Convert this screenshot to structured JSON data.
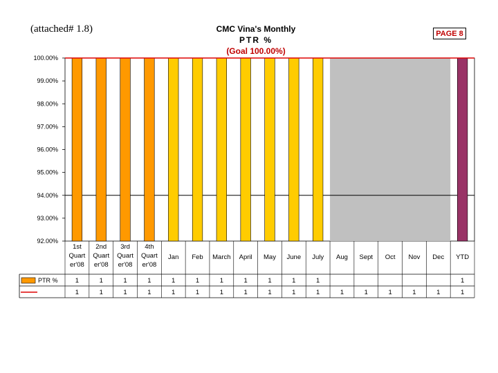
{
  "header": {
    "attached_label": "(attached# 1.8)",
    "page_label": "PAGE 8"
  },
  "colors": {
    "quarter_bar": "#ff9900",
    "month_bar": "#ffcc00",
    "ytd_bar": "#993366",
    "goal_line": "#dd0000",
    "plot_bg": "#c0c0c0"
  },
  "chart_data": {
    "type": "bar",
    "title": [
      "CMC Vina's Monthly",
      "PTR %",
      "(Goal 100.00%)"
    ],
    "categories": [
      [
        "1st",
        "Quart",
        "er'08"
      ],
      [
        "2nd",
        "Quart",
        "er'08"
      ],
      [
        "3rd",
        "Quart",
        "er'08"
      ],
      [
        "4th",
        "Quart",
        "er'08"
      ],
      [
        "Jan"
      ],
      [
        "Feb"
      ],
      [
        "March"
      ],
      [
        "April"
      ],
      [
        "May"
      ],
      [
        "June"
      ],
      [
        "July"
      ],
      [
        "Aug"
      ],
      [
        "Sept"
      ],
      [
        "Oct"
      ],
      [
        "Nov"
      ],
      [
        "Dec"
      ],
      [
        "YTD"
      ]
    ],
    "series": [
      {
        "name": "PTR %",
        "type": "bar",
        "values": [
          1,
          1,
          1,
          1,
          1,
          1,
          1,
          1,
          1,
          1,
          1,
          null,
          null,
          null,
          null,
          null,
          1
        ],
        "labels": [
          "1",
          "1",
          "1",
          "1",
          "1",
          "1",
          "1",
          "1",
          "1",
          "1",
          "1",
          "",
          "",
          "",
          "",
          "",
          "1"
        ]
      },
      {
        "name": "",
        "type": "line",
        "values": [
          1,
          1,
          1,
          1,
          1,
          1,
          1,
          1,
          1,
          1,
          1,
          1,
          1,
          1,
          1,
          1,
          1
        ],
        "labels": [
          "1",
          "1",
          "1",
          "1",
          "1",
          "1",
          "1",
          "1",
          "1",
          "1",
          "1",
          "1",
          "1",
          "1",
          "1",
          "1",
          "1"
        ]
      }
    ],
    "bar_kinds": [
      "quarter",
      "quarter",
      "quarter",
      "quarter",
      "month",
      "month",
      "month",
      "month",
      "month",
      "month",
      "month",
      "",
      "",
      "",
      "",
      "",
      "ytd"
    ],
    "ylim": [
      0.92,
      1.0
    ],
    "yticks": [
      "100.00%",
      "99.00%",
      "98.00%",
      "97.00%",
      "96.00%",
      "95.00%",
      "94.00%",
      "93.00%",
      "92.00%"
    ],
    "ytick_values": [
      1.0,
      0.99,
      0.98,
      0.97,
      0.96,
      0.95,
      0.94,
      0.93,
      0.92
    ],
    "highlight_gridline": 0.94
  }
}
